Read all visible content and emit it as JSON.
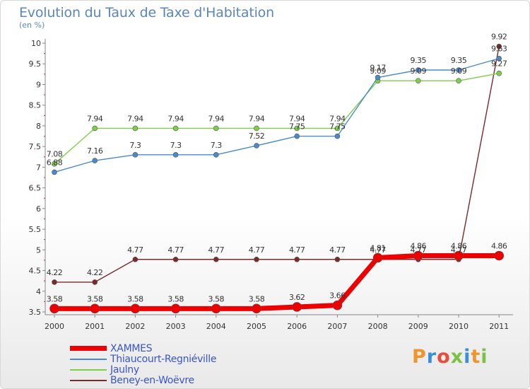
{
  "title": "Evolution du Taux de Taxe d'Habitation",
  "subtitle": "(en %)",
  "logo": {
    "text": "Proxiti",
    "colors": [
      "#f0952b",
      "#3a8fd6",
      "#e84c3d",
      "#7cc142",
      "#3a8fd6",
      "#f0952b",
      "#7cc142"
    ]
  },
  "chart_data": {
    "type": "line",
    "title": "Evolution du Taux de Taxe d'Habitation",
    "ylabel": "(en %)",
    "xlabel": "",
    "x": [
      2000,
      2001,
      2002,
      2003,
      2004,
      2005,
      2006,
      2007,
      2008,
      2009,
      2010,
      2011
    ],
    "ylim": [
      3.5,
      10
    ],
    "yticks": [
      3.5,
      4,
      4.5,
      5,
      5.5,
      6,
      6.5,
      7,
      7.5,
      8,
      8.5,
      9,
      9.5,
      10
    ],
    "grid": false,
    "legend_position": "bottom-left",
    "series": [
      {
        "name": "XAMMES",
        "color": "#ee0000",
        "values": [
          3.58,
          3.58,
          3.58,
          3.58,
          3.58,
          3.58,
          3.62,
          3.66,
          4.81,
          4.86,
          4.86,
          4.86
        ],
        "labels": [
          "3.58",
          "3.58",
          "3.58",
          "3.58",
          "3.58",
          "3.58",
          "3.62",
          "3.66",
          "4.81",
          "4.86",
          "4.86",
          "4.86"
        ]
      },
      {
        "name": "Thiaucourt-Regniéville",
        "color": "#4a8acb",
        "values": [
          6.88,
          7.16,
          7.3,
          7.3,
          7.3,
          7.52,
          7.75,
          7.75,
          9.17,
          9.35,
          9.35,
          9.63
        ],
        "labels": [
          "6.88",
          "7.16",
          "7.3",
          "7.3",
          "7.3",
          "7.52",
          "7.75",
          "7.75",
          "9.17",
          "9.35",
          "9.35",
          "9.63"
        ]
      },
      {
        "name": "Jaulny",
        "color": "#7dce49",
        "values": [
          7.08,
          7.94,
          7.94,
          7.94,
          7.94,
          7.94,
          7.94,
          7.94,
          9.09,
          9.09,
          9.09,
          9.27
        ],
        "labels": [
          "7.08",
          "7.94",
          "7.94",
          "7.94",
          "7.94",
          "7.94",
          "7.94",
          "7.94",
          "9.09",
          "9.09",
          "9.09",
          "9.27"
        ]
      },
      {
        "name": "Beney-en-Woëvre",
        "color": "#7a2a2a",
        "values": [
          4.22,
          4.22,
          4.77,
          4.77,
          4.77,
          4.77,
          4.77,
          4.77,
          4.77,
          4.77,
          4.77,
          9.92
        ],
        "labels": [
          "4.22",
          "4.22",
          "4.77",
          "4.77",
          "4.77",
          "4.77",
          "4.77",
          "4.77",
          "4.77",
          "4.77",
          "4.77",
          "9.92"
        ]
      }
    ]
  }
}
